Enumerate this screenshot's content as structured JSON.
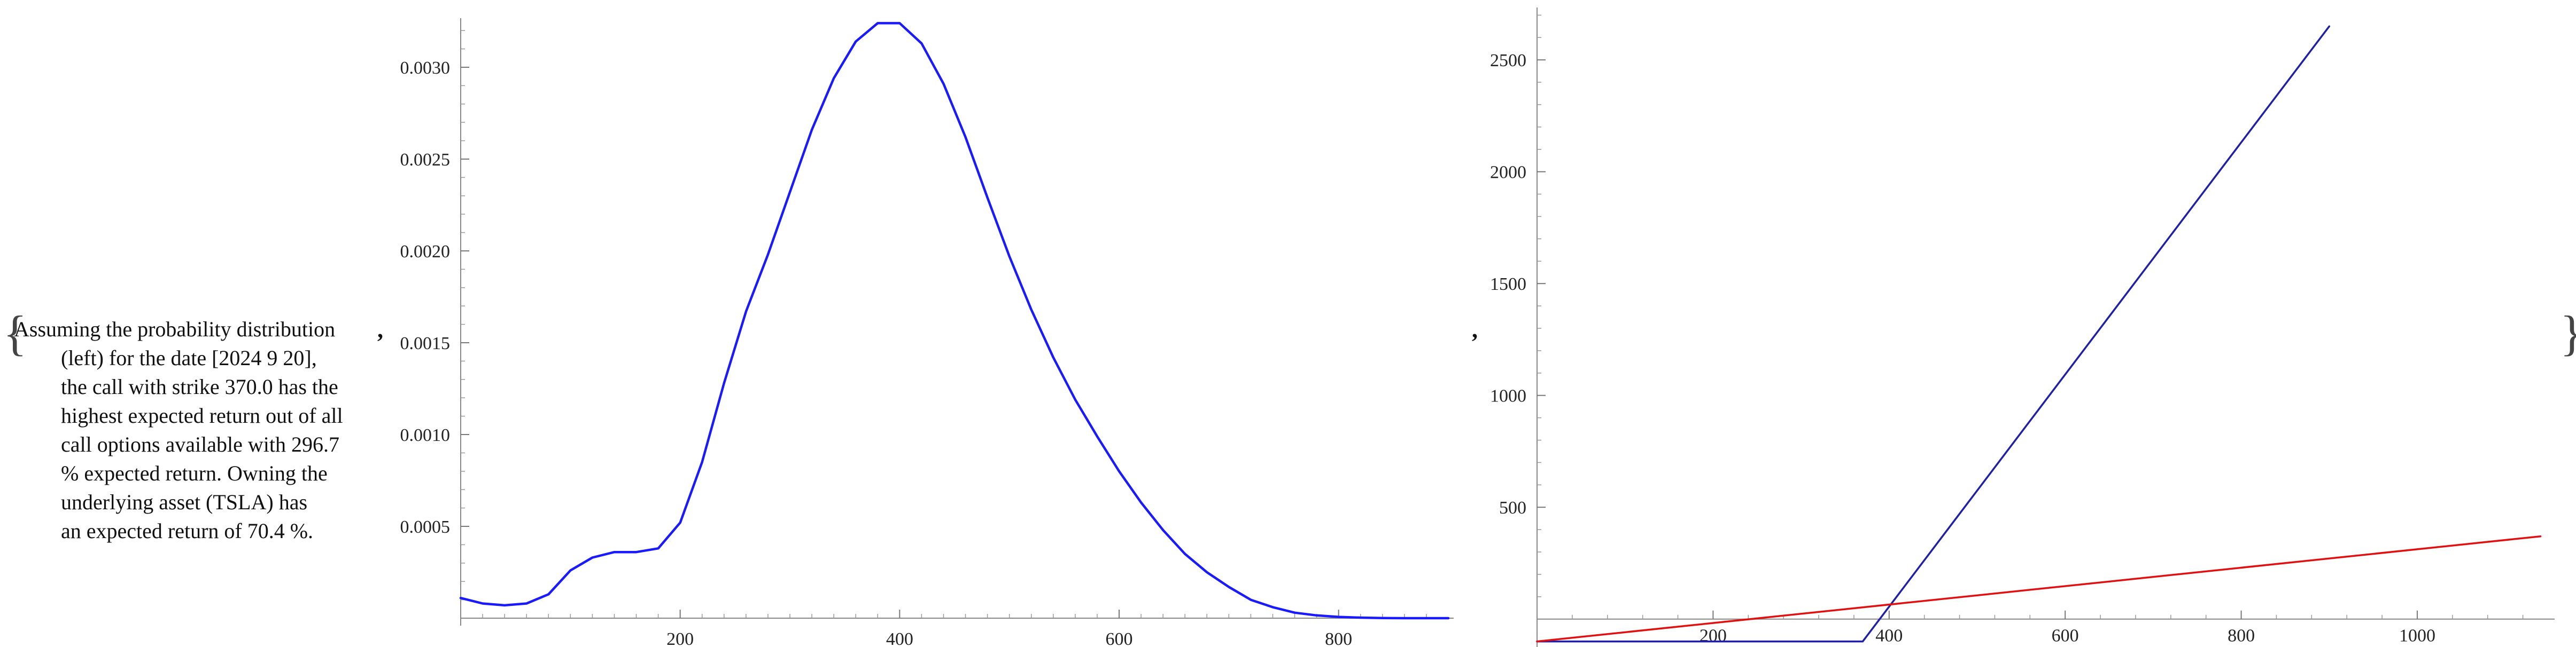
{
  "layout_glyphs": {
    "open_brace": "{",
    "close_brace": "}",
    "sep": ","
  },
  "caption": {
    "lines": [
      "Assuming the probability distribution",
      "(left) for the date [2024 9 20],",
      "the call with strike 370.0 has the",
      "highest expected return out of all",
      "call options available with 296.7",
      "% expected return. Owning the",
      "underlying asset (TSLA) has",
      "an expected return of 70.4 %."
    ]
  },
  "chart_data": [
    {
      "type": "line",
      "title": "",
      "xlabel": "",
      "ylabel": "",
      "xlim": [
        0,
        900
      ],
      "ylim": [
        0,
        0.00325
      ],
      "x_ticks": [
        200,
        400,
        600,
        800
      ],
      "y_ticks": [
        0.0005,
        0.001,
        0.0015,
        0.002,
        0.0025,
        0.003
      ],
      "y_tick_labels": [
        "0.0005",
        "0.0010",
        "0.0015",
        "0.0020",
        "0.0025",
        "0.0030"
      ],
      "grid": false,
      "series": [
        {
          "color": "#1a1aff",
          "x": [
            0,
            20,
            40,
            60,
            80,
            100,
            120,
            140,
            160,
            180,
            200,
            220,
            240,
            260,
            280,
            300,
            320,
            340,
            360,
            380,
            400,
            420,
            440,
            460,
            480,
            500,
            520,
            540,
            560,
            580,
            600,
            620,
            640,
            660,
            680,
            700,
            720,
            740,
            760,
            780,
            800,
            820,
            840,
            860,
            880,
            900
          ],
          "y": [
            0.00011,
            8e-05,
            7e-05,
            8e-05,
            0.00013,
            0.00026,
            0.00033,
            0.00036,
            0.00036,
            0.00038,
            0.00052,
            0.00085,
            0.00128,
            0.00167,
            0.00198,
            0.00232,
            0.00266,
            0.00294,
            0.00314,
            0.00324,
            0.00324,
            0.00313,
            0.00291,
            0.00262,
            0.00229,
            0.00197,
            0.00168,
            0.00142,
            0.00119,
            0.00099,
            0.0008,
            0.00063,
            0.00048,
            0.00035,
            0.00025,
            0.00017,
            0.0001,
            6e-05,
            3e-05,
            1.5e-05,
            7e-06,
            3e-06,
            1e-06,
            0.0,
            0.0,
            0.0
          ]
        }
      ]
    },
    {
      "type": "line",
      "title": "",
      "xlabel": "",
      "ylabel": "",
      "xlim": [
        0,
        1150
      ],
      "ylim": [
        -120,
        2720
      ],
      "x_ticks": [
        200,
        400,
        600,
        800,
        1000
      ],
      "y_ticks": [
        500,
        1000,
        1500,
        2000,
        2500
      ],
      "grid": false,
      "series": [
        {
          "color": "#1f1fa8",
          "x": [
            0,
            370,
            900
          ],
          "y": [
            -100,
            -100,
            2650
          ]
        },
        {
          "color": "#e01010",
          "x": [
            0,
            1140
          ],
          "y": [
            -100,
            370
          ]
        }
      ]
    }
  ]
}
